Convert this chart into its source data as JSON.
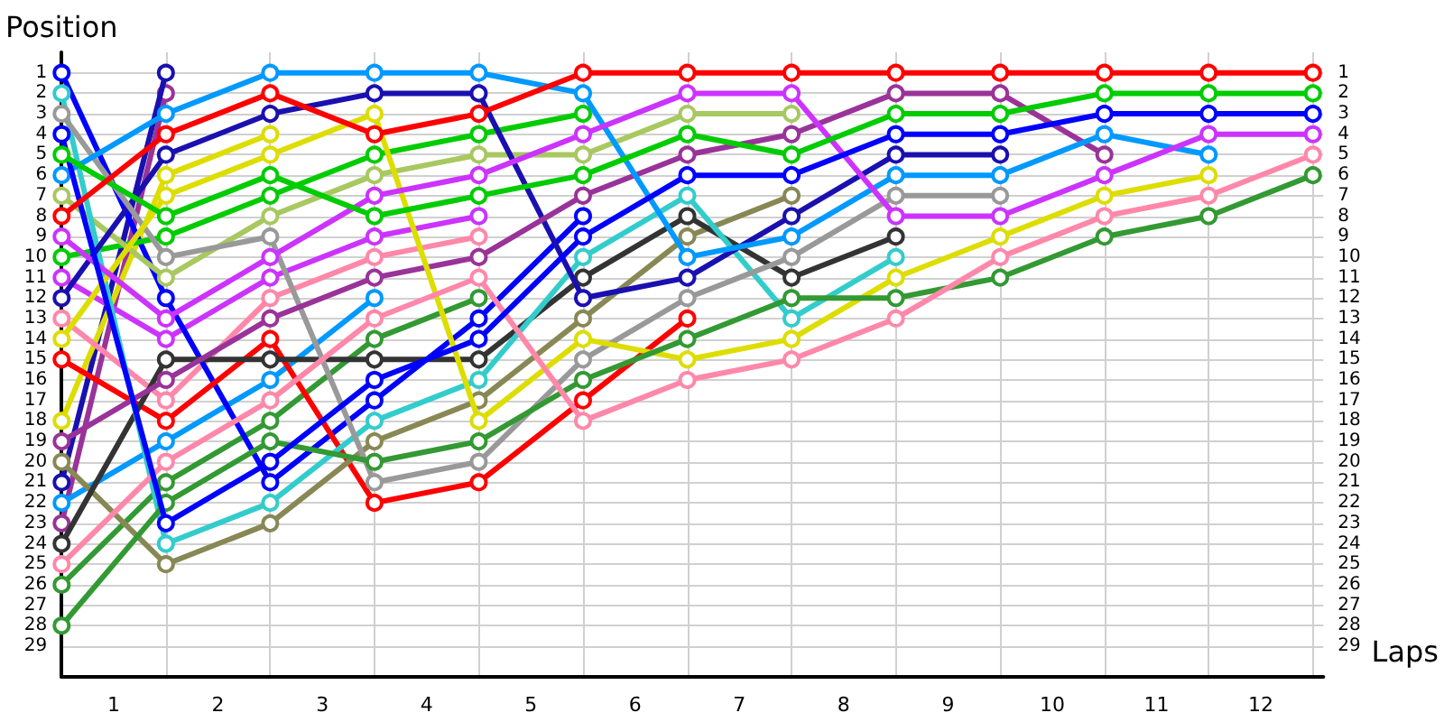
{
  "chart_data": {
    "type": "line",
    "ylabel": "Position",
    "xlabel": "Laps",
    "x": [
      0,
      1,
      2,
      3,
      4,
      5,
      6,
      7,
      8,
      9,
      10,
      11,
      12
    ],
    "xlim": [
      0,
      12.1
    ],
    "xticks": [
      {
        "value": 0.5,
        "label": "1"
      },
      {
        "value": 1.5,
        "label": "2"
      },
      {
        "value": 2.5,
        "label": "3"
      },
      {
        "value": 3.5,
        "label": "4"
      },
      {
        "value": 4.5,
        "label": "5"
      },
      {
        "value": 5.5,
        "label": "6"
      },
      {
        "value": 6.5,
        "label": "7"
      },
      {
        "value": 7.5,
        "label": "8"
      },
      {
        "value": 8.5,
        "label": "9"
      },
      {
        "value": 9.5,
        "label": "10"
      },
      {
        "value": 10.5,
        "label": "11"
      },
      {
        "value": 11.5,
        "label": "12"
      },
      {
        "value": 1,
        "label": null
      },
      {
        "value": 2,
        "label": null
      },
      {
        "value": 3,
        "label": null
      },
      {
        "value": 4,
        "label": null
      },
      {
        "value": 5,
        "label": null
      },
      {
        "value": 6,
        "label": null
      },
      {
        "value": 7,
        "label": null
      },
      {
        "value": 8,
        "label": null
      },
      {
        "value": 9,
        "label": null
      },
      {
        "value": 10,
        "label": null
      },
      {
        "value": 11,
        "label": null
      },
      {
        "value": 12,
        "label": null
      }
    ],
    "ylim": [
      30.5,
      0
    ],
    "yticks": [
      1,
      2,
      3,
      4,
      5,
      6,
      7,
      8,
      9,
      10,
      11,
      12,
      13,
      14,
      15,
      16,
      17,
      18,
      19,
      20,
      21,
      22,
      23,
      24,
      25,
      26,
      27,
      28,
      29
    ],
    "y2lim": [
      30.5,
      0
    ],
    "y2ticks": [
      1,
      2,
      3,
      4,
      5,
      6,
      7,
      8,
      9,
      10,
      11,
      12,
      13,
      14,
      15,
      16,
      17,
      18,
      19,
      20,
      21,
      22,
      23,
      24,
      25,
      26,
      27,
      28,
      29
    ],
    "grid": true,
    "marker": "circle",
    "line_style": "solid",
    "series": [
      {
        "color": "#ff0000",
        "values": [
          8,
          4,
          2,
          4,
          3,
          1,
          1,
          1,
          1,
          1,
          1,
          1,
          1
        ]
      },
      {
        "color": "#00cc00",
        "values": [
          5,
          8,
          6,
          8,
          7,
          6,
          4,
          5,
          3,
          3,
          2,
          2,
          2
        ]
      },
      {
        "color": "#0000ff",
        "values": [
          4,
          23,
          20,
          16,
          14,
          9,
          6,
          6,
          4,
          4,
          3,
          3,
          3
        ]
      },
      {
        "color": "#cc33ff",
        "values": [
          9,
          13,
          10,
          7,
          6,
          4,
          2,
          2,
          8,
          8,
          6,
          4,
          4
        ]
      },
      {
        "color": "#ff88aa",
        "values": [
          25,
          20,
          17,
          13,
          11,
          18,
          16,
          15,
          13,
          10,
          8,
          7,
          5
        ]
      },
      {
        "color": "#339933",
        "values": [
          28,
          22,
          19,
          20,
          19,
          16,
          14,
          12,
          12,
          11,
          9,
          8,
          6
        ]
      },
      {
        "color": "#dddd00",
        "values": [
          14,
          7,
          5,
          3,
          18,
          14,
          15,
          14,
          11,
          9,
          7,
          6,
          null
        ]
      },
      {
        "color": "#0099ff",
        "values": [
          6,
          3,
          1,
          1,
          1,
          2,
          10,
          9,
          6,
          6,
          4,
          5,
          null
        ]
      },
      {
        "color": "#993399",
        "values": [
          19,
          16,
          13,
          11,
          10,
          7,
          5,
          4,
          2,
          2,
          5,
          null,
          null
        ]
      },
      {
        "color": "#999999",
        "values": [
          3,
          10,
          9,
          21,
          20,
          15,
          12,
          10,
          7,
          7,
          null,
          null,
          null
        ]
      },
      {
        "color": "#1a10b0",
        "values": [
          12,
          5,
          3,
          2,
          2,
          12,
          11,
          8,
          5,
          5,
          null,
          null,
          null
        ]
      },
      {
        "color": "#33cccc",
        "values": [
          2,
          24,
          22,
          18,
          16,
          10,
          7,
          13,
          10,
          null,
          null,
          null,
          null
        ]
      },
      {
        "color": "#333333",
        "values": [
          24,
          15,
          15,
          15,
          15,
          11,
          8,
          11,
          9,
          null,
          null,
          null,
          null
        ]
      },
      {
        "color": "#a8c860",
        "values": [
          7,
          11,
          8,
          6,
          5,
          5,
          3,
          3,
          null,
          null,
          null,
          null,
          null
        ]
      },
      {
        "color": "#888855",
        "values": [
          20,
          25,
          23,
          19,
          17,
          13,
          9,
          7,
          null,
          null,
          null,
          null,
          null
        ]
      },
      {
        "color": "#ff0000",
        "values": [
          15,
          18,
          14,
          22,
          21,
          17,
          13,
          null,
          null,
          null,
          null,
          null,
          null
        ]
      },
      {
        "color": "#00cc00",
        "values": [
          10,
          9,
          7,
          5,
          4,
          3,
          null,
          null,
          null,
          null,
          null,
          null,
          null
        ]
      },
      {
        "color": "#0000ff",
        "values": [
          1,
          12,
          21,
          17,
          13,
          8,
          null,
          null,
          null,
          null,
          null,
          null,
          null
        ]
      },
      {
        "color": "#cc33ff",
        "values": [
          11,
          14,
          11,
          9,
          8,
          null,
          null,
          null,
          null,
          null,
          null,
          null,
          null
        ]
      },
      {
        "color": "#ff88aa",
        "values": [
          13,
          17,
          12,
          10,
          9,
          null,
          null,
          null,
          null,
          null,
          null,
          null,
          null
        ]
      },
      {
        "color": "#339933",
        "values": [
          26,
          21,
          18,
          14,
          12,
          null,
          null,
          null,
          null,
          null,
          null,
          null,
          null
        ]
      },
      {
        "color": "#0099ff",
        "values": [
          22,
          19,
          16,
          12,
          null,
          null,
          null,
          null,
          null,
          null,
          null,
          null,
          null
        ]
      },
      {
        "color": "#dddd00",
        "values": [
          18,
          6,
          4,
          null,
          null,
          null,
          null,
          null,
          null,
          null,
          null,
          null,
          null
        ]
      },
      {
        "color": "#1a10b0",
        "values": [
          21,
          1,
          null,
          null,
          null,
          null,
          null,
          null,
          null,
          null,
          null,
          null,
          null
        ]
      },
      {
        "color": "#993399",
        "values": [
          23,
          2,
          null,
          null,
          null,
          null,
          null,
          null,
          null,
          null,
          null,
          null,
          null
        ]
      }
    ]
  }
}
